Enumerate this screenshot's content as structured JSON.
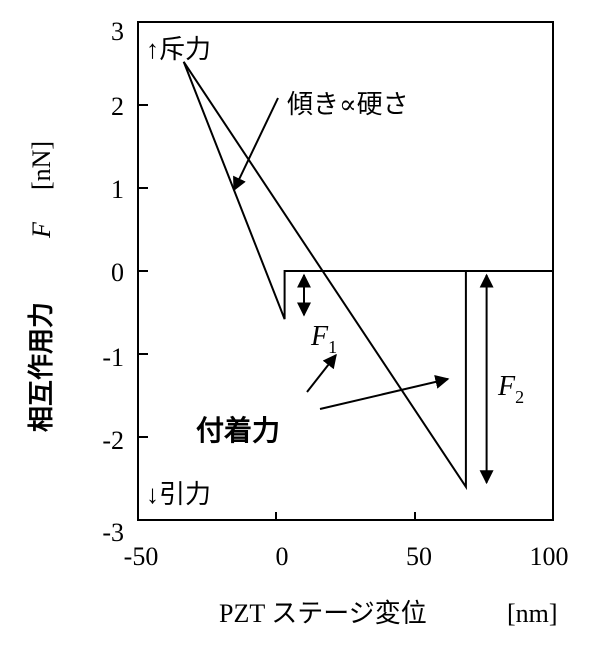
{
  "chart_data": {
    "type": "line",
    "title": "",
    "xlabel": "PZT ステージ変位",
    "xunit": "[nm]",
    "ylabel": "相互作用力",
    "ysymbol": "F",
    "yunit": "[nN]",
    "xlim": [
      -50,
      100
    ],
    "ylim": [
      -3,
      3
    ],
    "xticks": [
      "-50",
      "0",
      "50",
      "100"
    ],
    "yticks": [
      "3",
      "2",
      "1",
      "0",
      "-1",
      "-2",
      "-3"
    ],
    "grid": false,
    "series": [
      {
        "segment": "approach",
        "x": [
          100,
          3,
          3,
          -33.5
        ],
        "y": [
          0,
          0,
          -0.58,
          2.52
        ]
      },
      {
        "segment": "retract",
        "x": [
          -33.5,
          68.5,
          68.5,
          100
        ],
        "y": [
          2.52,
          -2.6,
          0,
          0
        ]
      }
    ],
    "annotations": {
      "repulsive": "↑斥力",
      "attractive": "↓引力",
      "slope": "傾き∝硬さ",
      "adhesion": "付着力",
      "f1_main": "F",
      "f1_sub": "1",
      "f2_main": "F",
      "f2_sub": "2"
    },
    "arrows": {
      "f1": {
        "x": 10,
        "y_from": 0,
        "y_to": -0.58
      },
      "f2": {
        "x": 76,
        "y_from": 0,
        "y_to": -2.6
      }
    }
  }
}
